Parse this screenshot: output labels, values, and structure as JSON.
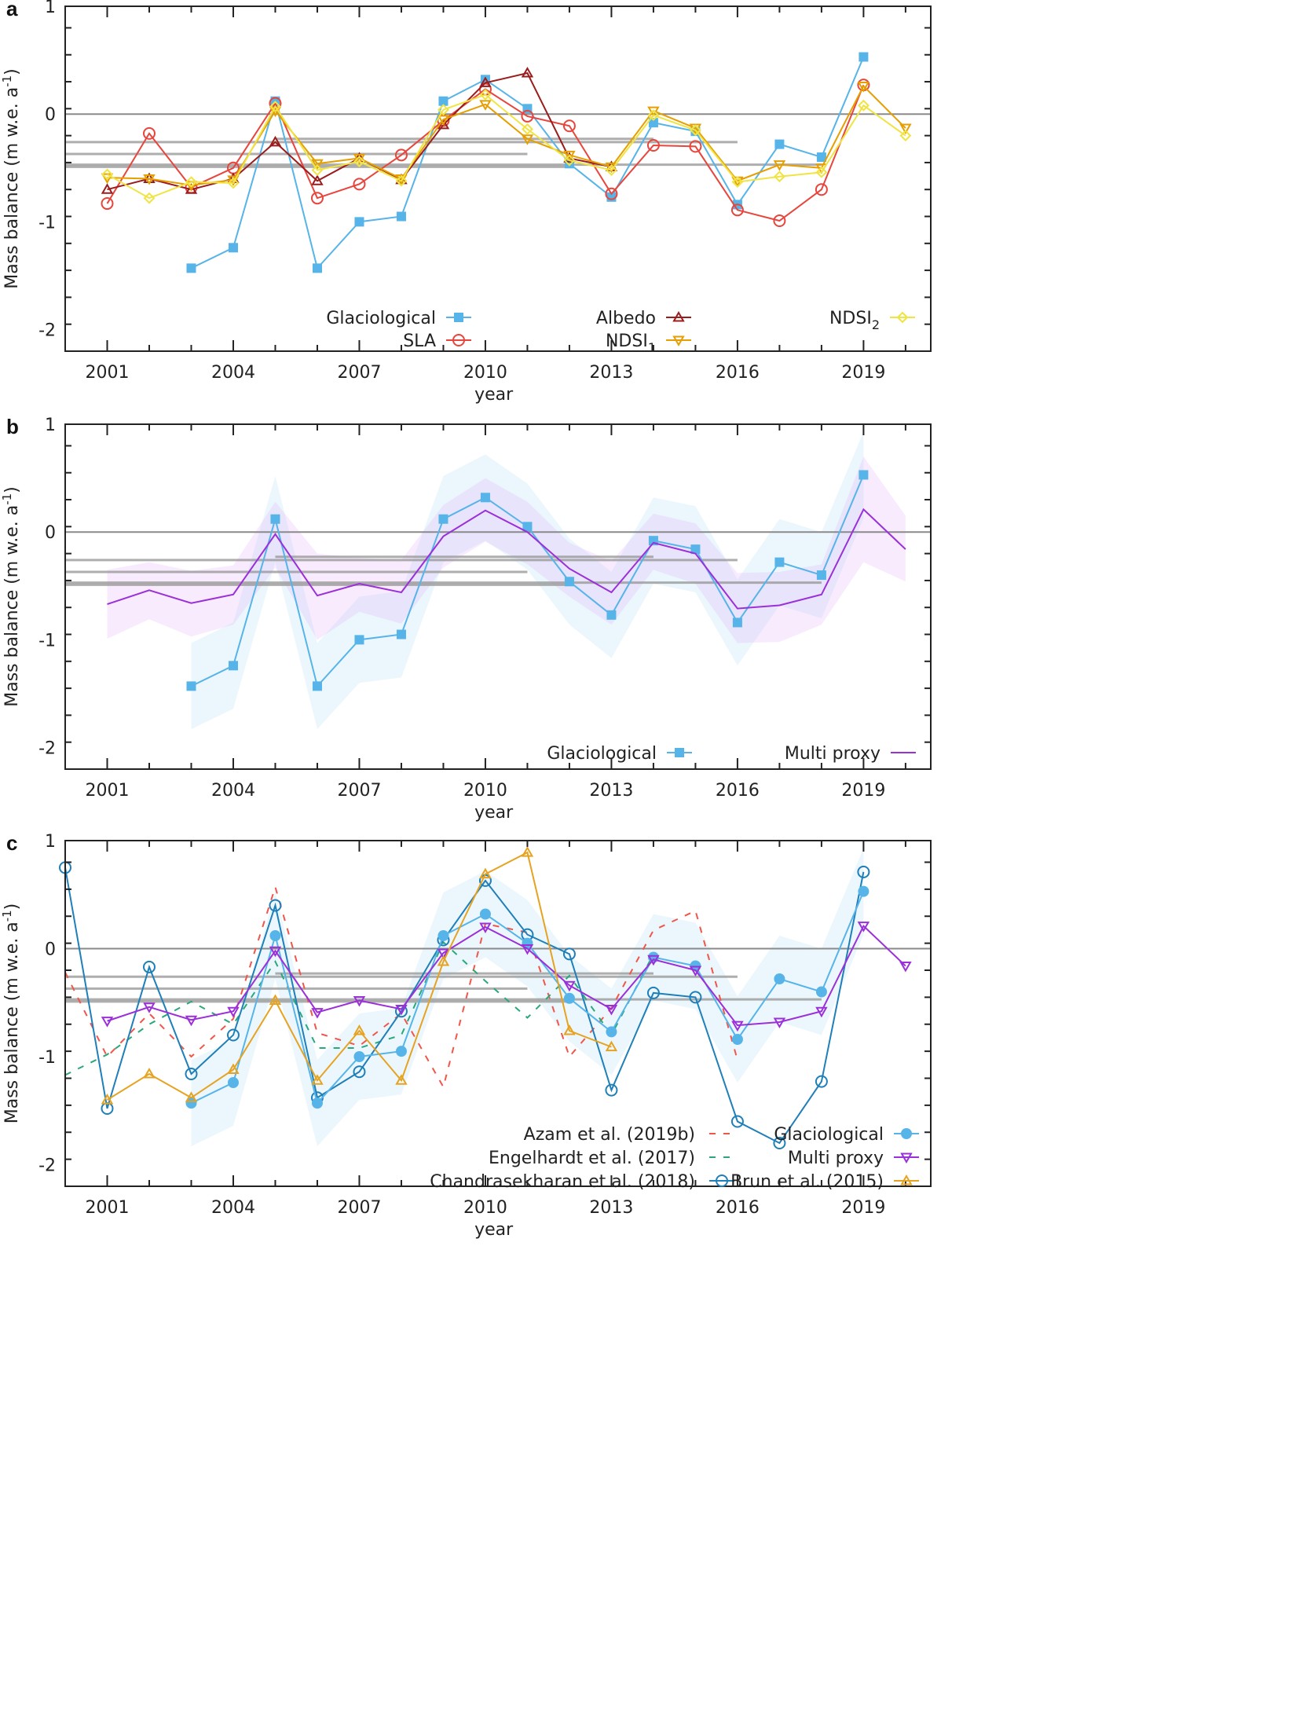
{
  "figure": {
    "panels": [
      "a",
      "b",
      "c"
    ]
  },
  "chart_data": [
    {
      "panel": "a",
      "type": "line",
      "xlabel": "year",
      "ylabel": "Mass balance (m w.e. a⁻¹)",
      "xlim": [
        2000,
        2020.6
      ],
      "ylim": [
        -2.2,
        1
      ],
      "xticks": [
        2001,
        2004,
        2007,
        2010,
        2013,
        2016,
        2019
      ],
      "yticks": [
        1,
        0,
        -1,
        -2
      ],
      "grid": false,
      "legend_position": "bottom",
      "reference_lines": [
        {
          "y": 0,
          "x0": 2000,
          "x1": 2020.6
        },
        {
          "y": -0.23,
          "x0": 2005,
          "x1": 2014
        },
        {
          "y": -0.26,
          "x0": 2000,
          "x1": 2016
        },
        {
          "y": -0.37,
          "x0": 2000,
          "x1": 2011
        },
        {
          "y": -0.47,
          "x0": 2000,
          "x1": 2018
        },
        {
          "y": -0.49,
          "x0": 2000,
          "x1": 2012
        }
      ],
      "series": [
        {
          "name": "Glaciological",
          "color": "#56b4e9",
          "marker": "square-filled",
          "dash": "",
          "x": [
            2003,
            2004,
            2005,
            2006,
            2007,
            2008,
            2009,
            2010,
            2011,
            2012,
            2013,
            2014,
            2015,
            2016,
            2017,
            2018,
            2019
          ],
          "values": [
            -1.43,
            -1.24,
            0.12,
            -1.43,
            -1.0,
            -0.95,
            0.12,
            0.32,
            0.05,
            -0.46,
            -0.77,
            -0.08,
            -0.16,
            -0.84,
            -0.28,
            -0.4,
            0.53
          ]
        },
        {
          "name": "SLA",
          "color": "#e8453c",
          "marker": "circle-open",
          "dash": "",
          "x": [
            2001,
            2002,
            2003,
            2004,
            2005,
            2006,
            2007,
            2008,
            2009,
            2010,
            2011,
            2012,
            2013,
            2014,
            2015,
            2016,
            2017,
            2018,
            2019
          ],
          "values": [
            -0.83,
            -0.18,
            -0.68,
            -0.5,
            0.1,
            -0.78,
            -0.65,
            -0.38,
            -0.06,
            0.23,
            -0.02,
            -0.11,
            -0.74,
            -0.29,
            -0.3,
            -0.89,
            -0.99,
            -0.7,
            0.27
          ]
        },
        {
          "name": "Albedo",
          "color": "#9b1c1c",
          "marker": "triangle-up-open",
          "dash": "",
          "x": [
            2001,
            2002,
            2003,
            2004,
            2005,
            2006,
            2007,
            2008,
            2009,
            2010,
            2011,
            2012,
            2013
          ],
          "values": [
            -0.7,
            -0.6,
            -0.7,
            -0.6,
            -0.26,
            -0.62,
            -0.41,
            -0.61,
            -0.1,
            0.29,
            0.38,
            -0.41,
            -0.49
          ]
        },
        {
          "name": "NDSI1",
          "color": "#e69f00",
          "marker": "triangle-down-open",
          "dash": "",
          "x": [
            2001,
            2002,
            2003,
            2004,
            2005,
            2006,
            2007,
            2008,
            2009,
            2010,
            2011,
            2012,
            2013,
            2014,
            2015,
            2016,
            2017,
            2018,
            2019,
            2020
          ],
          "values": [
            -0.59,
            -0.6,
            -0.66,
            -0.61,
            0.03,
            -0.46,
            -0.41,
            -0.6,
            -0.05,
            0.09,
            -0.23,
            -0.38,
            -0.49,
            0.03,
            -0.13,
            -0.62,
            -0.47,
            -0.5,
            0.26,
            -0.13
          ]
        },
        {
          "name": "NDSI2",
          "color": "#f0e442",
          "marker": "diamond-open",
          "dash": "",
          "x": [
            2001,
            2002,
            2003,
            2004,
            2005,
            2006,
            2007,
            2008,
            2009,
            2010,
            2011,
            2012,
            2013,
            2014,
            2015,
            2016,
            2017,
            2018,
            2019,
            2020
          ],
          "values": [
            -0.56,
            -0.78,
            -0.63,
            -0.64,
            0.07,
            -0.52,
            -0.44,
            -0.62,
            0.04,
            0.18,
            -0.14,
            -0.43,
            -0.52,
            -0.01,
            -0.15,
            -0.63,
            -0.58,
            -0.54,
            0.08,
            -0.2
          ]
        }
      ],
      "legend": [
        {
          "label": "Glaciological",
          "sub": ""
        },
        {
          "label": "SLA",
          "sub": ""
        },
        {
          "label": "Albedo",
          "sub": ""
        },
        {
          "label": "NDSI",
          "sub": "1"
        },
        {
          "label": "NDSI",
          "sub": "2"
        }
      ]
    },
    {
      "panel": "b",
      "type": "line",
      "xlabel": "year",
      "ylabel": "Mass balance (m w.e. a⁻¹)",
      "xlim": [
        2000,
        2020.6
      ],
      "ylim": [
        -2.2,
        1
      ],
      "xticks": [
        2001,
        2004,
        2007,
        2010,
        2013,
        2016,
        2019
      ],
      "yticks": [
        1,
        0,
        -1,
        -2
      ],
      "grid": false,
      "legend_position": "bottom-right",
      "reference_lines": [
        {
          "y": 0,
          "x0": 2000,
          "x1": 2020.6
        },
        {
          "y": -0.23,
          "x0": 2005,
          "x1": 2014
        },
        {
          "y": -0.26,
          "x0": 2000,
          "x1": 2016
        },
        {
          "y": -0.37,
          "x0": 2000,
          "x1": 2011
        },
        {
          "y": -0.47,
          "x0": 2000,
          "x1": 2018
        },
        {
          "y": -0.49,
          "x0": 2000,
          "x1": 2012
        }
      ],
      "bands": [
        {
          "name": "Glaciological uncertainty",
          "color": "#56b4e9",
          "opacity": 0.11,
          "x": [
            2003,
            2004,
            2005,
            2006,
            2007,
            2008,
            2009,
            2010,
            2011,
            2012,
            2013,
            2014,
            2015,
            2016,
            2017,
            2018,
            2019
          ],
          "upper": [
            -1.03,
            -0.84,
            0.52,
            -1.03,
            -0.6,
            -0.55,
            0.52,
            0.72,
            0.45,
            -0.06,
            -0.37,
            0.32,
            0.24,
            -0.44,
            0.12,
            0.0,
            0.93
          ],
          "lower": [
            -1.83,
            -1.64,
            -0.28,
            -1.83,
            -1.4,
            -1.35,
            -0.28,
            -0.08,
            -0.35,
            -0.86,
            -1.17,
            -0.48,
            -0.56,
            -1.24,
            -0.68,
            -0.8,
            0.13
          ]
        },
        {
          "name": "Multi proxy uncertainty",
          "color": "#cc66ee",
          "opacity": 0.13,
          "x": [
            2001,
            2002,
            2003,
            2004,
            2005,
            2006,
            2007,
            2008,
            2009,
            2010,
            2011,
            2012,
            2013,
            2014,
            2015,
            2016,
            2017,
            2018,
            2019,
            2020
          ],
          "upper": [
            -0.35,
            -0.28,
            -0.36,
            -0.31,
            0.28,
            -0.2,
            -0.24,
            -0.26,
            0.25,
            0.5,
            0.28,
            -0.1,
            -0.27,
            0.17,
            0.08,
            -0.38,
            -0.37,
            -0.3,
            0.7,
            0.15
          ],
          "lower": [
            -0.99,
            -0.81,
            -0.97,
            -0.86,
            -0.33,
            -1.0,
            -0.74,
            -0.85,
            -0.33,
            -0.09,
            -0.3,
            -0.6,
            -0.86,
            -0.35,
            -0.48,
            -1.03,
            -1.02,
            -0.86,
            -0.28,
            -0.46
          ]
        }
      ],
      "series": [
        {
          "name": "Glaciological",
          "color": "#56b4e9",
          "marker": "square-filled",
          "dash": "",
          "x": [
            2003,
            2004,
            2005,
            2006,
            2007,
            2008,
            2009,
            2010,
            2011,
            2012,
            2013,
            2014,
            2015,
            2016,
            2017,
            2018,
            2019
          ],
          "values": [
            -1.43,
            -1.24,
            0.12,
            -1.43,
            -1.0,
            -0.95,
            0.12,
            0.32,
            0.05,
            -0.46,
            -0.77,
            -0.08,
            -0.16,
            -0.84,
            -0.28,
            -0.4,
            0.53
          ]
        },
        {
          "name": "Multi proxy",
          "color": "#9b30d9",
          "marker": "none",
          "dash": "",
          "x": [
            2001,
            2002,
            2003,
            2004,
            2005,
            2006,
            2007,
            2008,
            2009,
            2010,
            2011,
            2012,
            2013,
            2014,
            2015,
            2016,
            2017,
            2018,
            2019,
            2020
          ],
          "values": [
            -0.67,
            -0.54,
            -0.66,
            -0.58,
            -0.02,
            -0.59,
            -0.48,
            -0.56,
            -0.04,
            0.2,
            0.0,
            -0.34,
            -0.56,
            -0.1,
            -0.2,
            -0.71,
            -0.68,
            -0.58,
            0.21,
            -0.16
          ]
        }
      ],
      "legend": [
        {
          "label": "Glaciological",
          "sub": ""
        },
        {
          "label": "Multi proxy",
          "sub": ""
        }
      ]
    },
    {
      "panel": "c",
      "type": "line",
      "xlabel": "year",
      "ylabel": "Mass balance (m w.e. a⁻¹)",
      "xlim": [
        2000,
        2020.6
      ],
      "ylim": [
        -2.2,
        1
      ],
      "xticks": [
        2001,
        2004,
        2007,
        2010,
        2013,
        2016,
        2019
      ],
      "yticks": [
        1,
        0,
        -1,
        -2
      ],
      "grid": false,
      "legend_position": "bottom",
      "reference_lines": [
        {
          "y": 0,
          "x0": 2000,
          "x1": 2020.6
        },
        {
          "y": -0.23,
          "x0": 2005,
          "x1": 2014
        },
        {
          "y": -0.26,
          "x0": 2000,
          "x1": 2016
        },
        {
          "y": -0.37,
          "x0": 2000,
          "x1": 2011
        },
        {
          "y": -0.47,
          "x0": 2000,
          "x1": 2018
        },
        {
          "y": -0.49,
          "x0": 2000,
          "x1": 2012
        }
      ],
      "bands": [
        {
          "name": "Glaciological uncertainty",
          "color": "#56b4e9",
          "opacity": 0.11,
          "x": [
            2003,
            2004,
            2005,
            2006,
            2007,
            2008,
            2009,
            2010,
            2011,
            2012,
            2013,
            2014,
            2015,
            2016,
            2017,
            2018,
            2019
          ],
          "upper": [
            -1.03,
            -0.84,
            0.52,
            -1.03,
            -0.6,
            -0.55,
            0.52,
            0.72,
            0.45,
            -0.06,
            -0.37,
            0.32,
            0.24,
            -0.44,
            0.12,
            0.0,
            0.93
          ],
          "lower": [
            -1.83,
            -1.64,
            -0.28,
            -1.83,
            -1.4,
            -1.35,
            -0.28,
            -0.08,
            -0.35,
            -0.86,
            -1.17,
            -0.48,
            -0.56,
            -1.24,
            -0.68,
            -0.8,
            0.13
          ]
        }
      ],
      "series": [
        {
          "name": "Azam et al. (2019b)",
          "color": "#f0564a",
          "marker": "none",
          "dash": "8,10",
          "x": [
            2000,
            2001,
            2002,
            2003,
            2004,
            2005,
            2006,
            2007,
            2008,
            2009,
            2010,
            2011,
            2012,
            2013,
            2014,
            2015,
            2016
          ],
          "values": [
            -0.22,
            -1.0,
            -0.6,
            -1.0,
            -0.65,
            0.57,
            -0.78,
            -0.9,
            -0.6,
            -1.28,
            0.23,
            0.15,
            -1.0,
            -0.55,
            0.17,
            0.35,
            -1.03
          ]
        },
        {
          "name": "Engelhardt et al. (2017)",
          "color": "#2aa87a",
          "marker": "none",
          "dash": "8,10",
          "x": [
            2000,
            2001,
            2002,
            2003,
            2004,
            2005,
            2006,
            2007,
            2008,
            2009,
            2010,
            2011,
            2012,
            2013,
            2014
          ],
          "values": [
            -1.17,
            -0.98,
            -0.7,
            -0.49,
            -0.7,
            -0.12,
            -0.92,
            -0.92,
            -0.8,
            0.06,
            -0.3,
            -0.64,
            -0.25,
            -0.8,
            -0.05
          ]
        },
        {
          "name": "Chandrasekharan et al. (2018)",
          "color": "#1f7fb8",
          "marker": "circle-open",
          "dash": "",
          "x": [
            2000,
            2001,
            2002,
            2003,
            2004,
            2005,
            2006,
            2007,
            2008,
            2009,
            2010,
            2011,
            2012,
            2013,
            2014,
            2015,
            2016,
            2017,
            2018,
            2019
          ],
          "values": [
            0.75,
            -1.48,
            -0.17,
            -1.16,
            -0.8,
            0.4,
            -1.38,
            -1.14,
            -0.58,
            0.08,
            0.63,
            0.13,
            -0.05,
            -1.31,
            -0.41,
            -0.45,
            -1.6,
            -1.8,
            -1.23,
            0.71
          ]
        },
        {
          "name": "Glaciological",
          "color": "#56b4e9",
          "marker": "circle-filled",
          "dash": "",
          "x": [
            2003,
            2004,
            2005,
            2006,
            2007,
            2008,
            2009,
            2010,
            2011,
            2012,
            2013,
            2014,
            2015,
            2016,
            2017,
            2018,
            2019
          ],
          "values": [
            -1.43,
            -1.24,
            0.12,
            -1.43,
            -1.0,
            -0.95,
            0.12,
            0.32,
            0.05,
            -0.46,
            -0.77,
            -0.08,
            -0.16,
            -0.84,
            -0.28,
            -0.4,
            0.53
          ]
        },
        {
          "name": "Multi proxy",
          "color": "#9b30d9",
          "marker": "triangle-down-open",
          "dash": "",
          "x": [
            2001,
            2002,
            2003,
            2004,
            2005,
            2006,
            2007,
            2008,
            2009,
            2010,
            2011,
            2012,
            2013,
            2014,
            2015,
            2016,
            2017,
            2018,
            2019,
            2020
          ],
          "values": [
            -0.67,
            -0.54,
            -0.66,
            -0.58,
            -0.02,
            -0.59,
            -0.48,
            -0.56,
            -0.04,
            0.2,
            0.0,
            -0.34,
            -0.56,
            -0.1,
            -0.2,
            -0.71,
            -0.68,
            -0.58,
            0.21,
            -0.16
          ]
        },
        {
          "name": "Brun et al. (2015)",
          "color": "#e6a321",
          "marker": "triangle-up-open",
          "dash": "",
          "x": [
            2001,
            2002,
            2003,
            2004,
            2005,
            2006,
            2007,
            2008,
            2009,
            2010,
            2011,
            2012,
            2013
          ],
          "values": [
            -1.4,
            -1.16,
            -1.38,
            -1.12,
            -0.48,
            -1.22,
            -0.76,
            -1.22,
            -0.12,
            0.69,
            0.89,
            -0.76,
            -0.91
          ]
        }
      ],
      "legend": [
        {
          "label": "Azam et al. (2019b)",
          "sub": ""
        },
        {
          "label": "Engelhardt et al. (2017)",
          "sub": ""
        },
        {
          "label": "Chandrasekharan et al. (2018)",
          "sub": ""
        },
        {
          "label": "Glaciological",
          "sub": ""
        },
        {
          "label": "Multi proxy",
          "sub": ""
        },
        {
          "label": "Brun et al. (2015)",
          "sub": ""
        }
      ]
    }
  ],
  "text": {
    "panel_a_label": "a",
    "panel_b_label": "b",
    "panel_c_label": "c",
    "xlabel": "year",
    "ylabel_main": "Mass balance (m w.e. a",
    "ylabel_sup": "-1",
    "ylabel_close": ")"
  }
}
